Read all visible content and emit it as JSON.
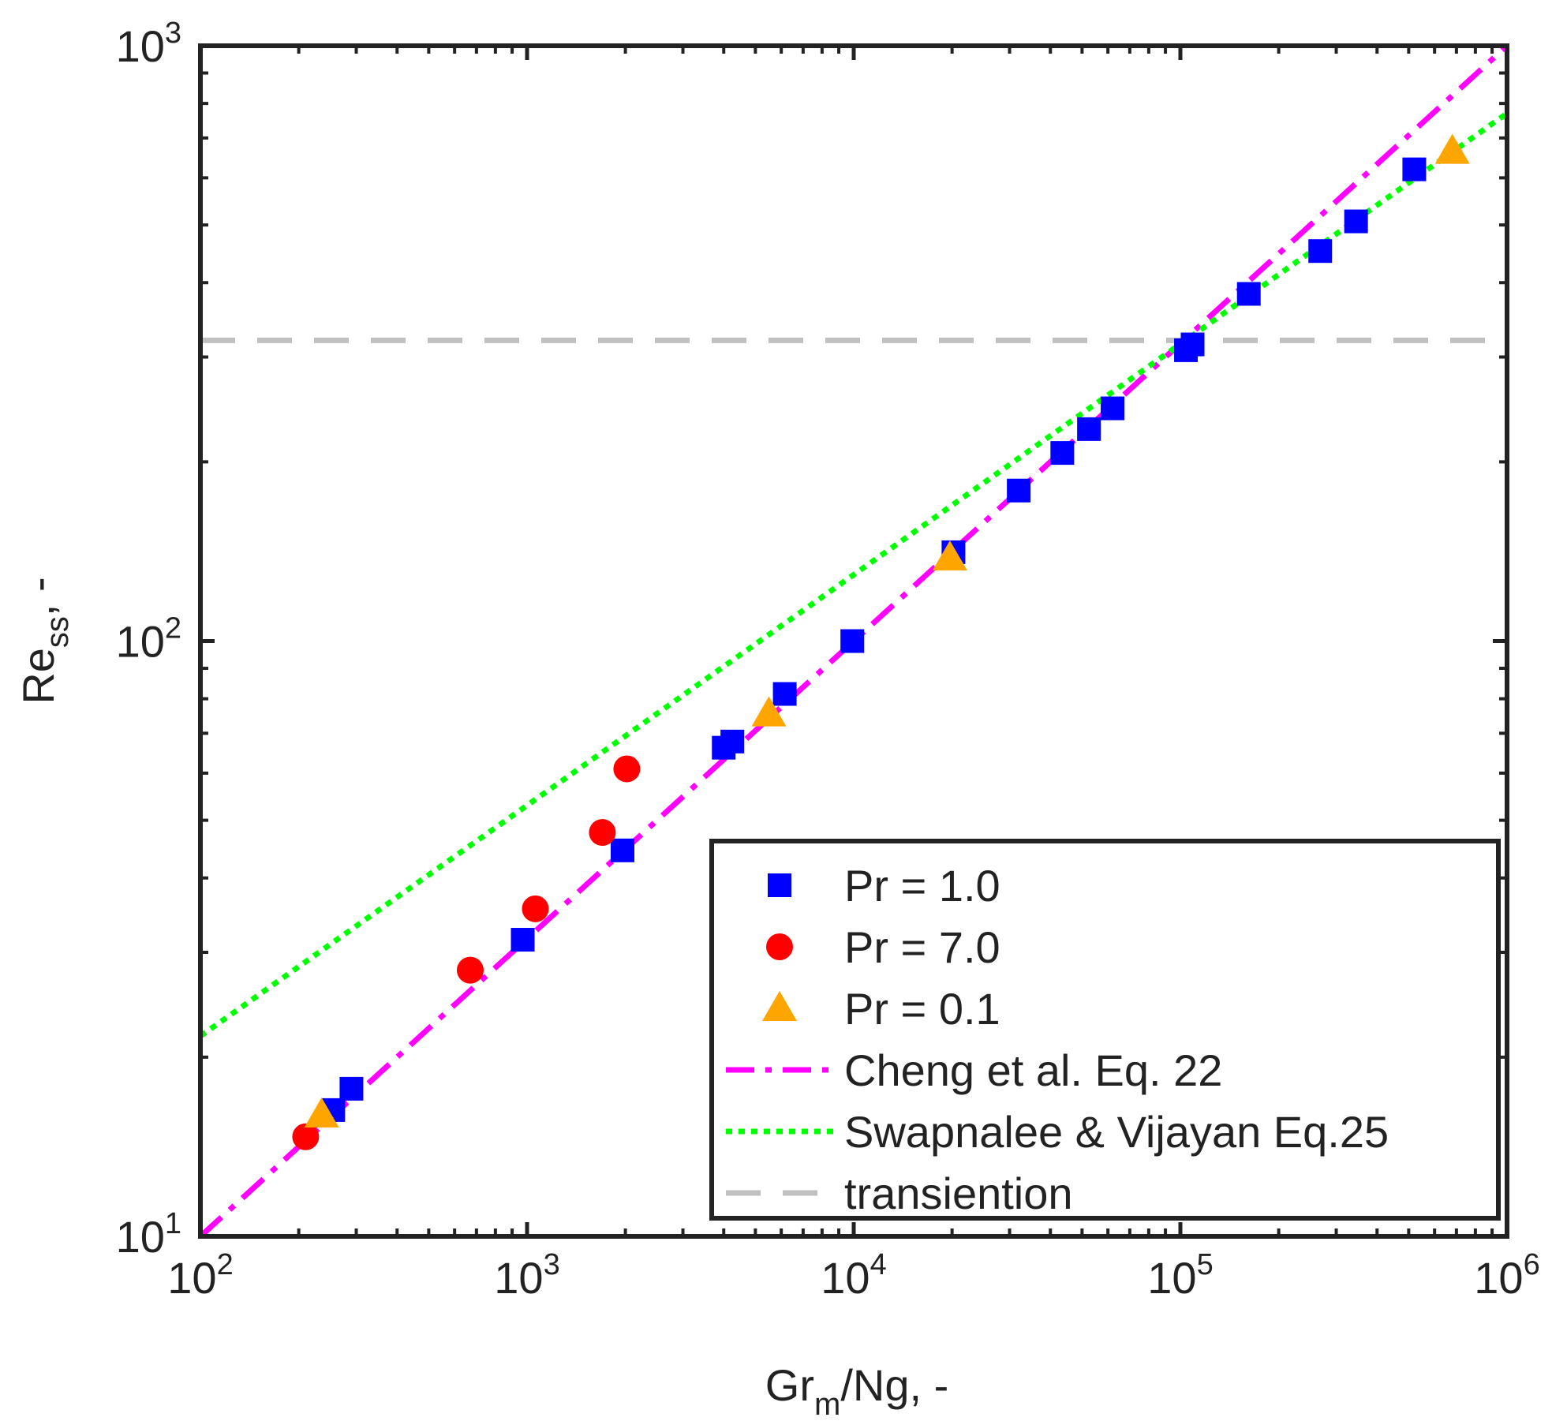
{
  "chart_data": {
    "type": "scatter",
    "x_scale": "log",
    "y_scale": "log",
    "xlim": [
      100,
      1000000
    ],
    "ylim": [
      10,
      1000
    ],
    "xlabel": {
      "main": "Gr",
      "sub": "m",
      "rest": "/Ng, -"
    },
    "ylabel": {
      "main": "Re",
      "sub": "ss",
      "rest": ", -"
    },
    "x_ticks": [
      {
        "base": "10",
        "exp": "2"
      },
      {
        "base": "10",
        "exp": "3"
      },
      {
        "base": "10",
        "exp": "4"
      },
      {
        "base": "10",
        "exp": "5"
      },
      {
        "base": "10",
        "exp": "6"
      }
    ],
    "y_ticks": [
      {
        "base": "10",
        "exp": "1"
      },
      {
        "base": "10",
        "exp": "2"
      },
      {
        "base": "10",
        "exp": "3"
      }
    ],
    "series": [
      {
        "name": "Pr = 1.0",
        "marker": "square",
        "color": "#0000ff",
        "points": [
          [
            255,
            16.3
          ],
          [
            290,
            17.7
          ],
          [
            970,
            31.5
          ],
          [
            1960,
            44.5
          ],
          [
            4000,
            66.2
          ],
          [
            4250,
            67.8
          ],
          [
            6150,
            81.5
          ],
          [
            9900,
            100
          ],
          [
            20200,
            141
          ],
          [
            32000,
            179
          ],
          [
            43500,
            207
          ],
          [
            52500,
            227
          ],
          [
            62000,
            246
          ],
          [
            104000,
            308
          ],
          [
            109000,
            315
          ],
          [
            162000,
            383
          ],
          [
            268000,
            452
          ],
          [
            345000,
            507
          ],
          [
            520000,
            620
          ]
        ]
      },
      {
        "name": "Pr = 7.0",
        "marker": "circle",
        "color": "#ff0000",
        "points": [
          [
            210,
            14.7
          ],
          [
            670,
            28.0
          ],
          [
            1060,
            35.5
          ],
          [
            1700,
            47.7
          ],
          [
            2020,
            61.0
          ]
        ]
      },
      {
        "name": "Pr = 0.1",
        "marker": "triangle",
        "color": "#ffa500",
        "points": [
          [
            235,
            16.0
          ],
          [
            5500,
            75.5
          ],
          [
            19700,
            138
          ],
          [
            680000,
            665
          ]
        ]
      }
    ],
    "lines": [
      {
        "name": "Cheng et al. Eq. 22",
        "style": "dashdot",
        "color": "#ff00ff",
        "points": [
          [
            100,
            10
          ],
          [
            1000000,
            1000
          ]
        ]
      },
      {
        "name": "Swapnalee & Vijayan Eq.25",
        "style": "dotted",
        "color": "#00ff00",
        "points": [
          [
            100,
            21.7
          ],
          [
            1000000,
            770
          ]
        ]
      },
      {
        "name": "transiention",
        "style": "dashed",
        "color": "#c0c0c0",
        "points": [
          [
            100,
            320
          ],
          [
            1000000,
            320
          ]
        ]
      }
    ],
    "legend": {
      "location": "bottom-right",
      "entries": [
        "Pr = 1.0",
        "Pr = 7.0",
        "Pr = 0.1",
        "Cheng et al. Eq. 22",
        "Swapnalee & Vijayan Eq.25",
        "transiention"
      ]
    }
  }
}
